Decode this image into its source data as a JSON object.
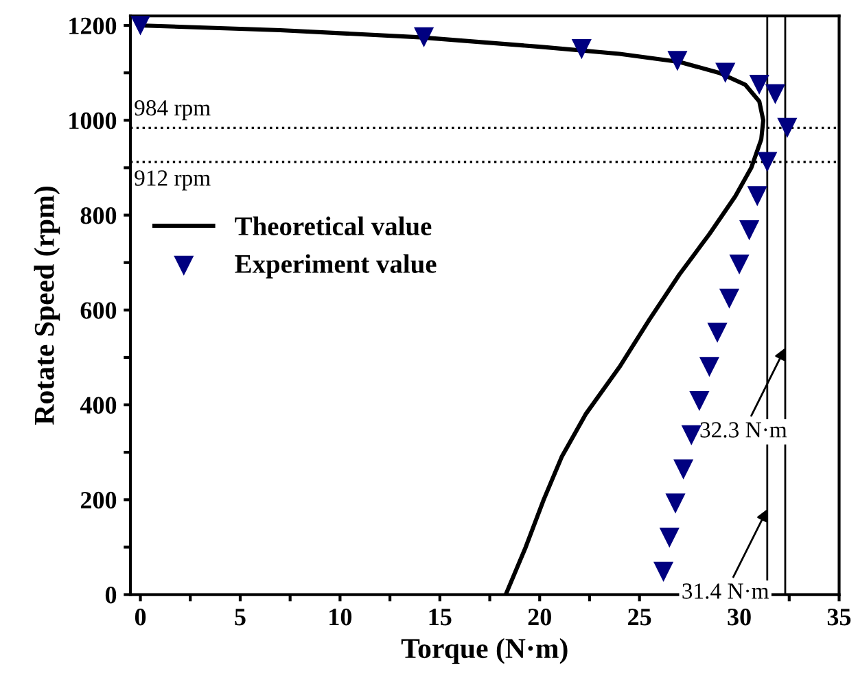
{
  "chart_data": {
    "type": "line",
    "xlabel": "Torque (N·m)",
    "ylabel": "Rotate Speed (rpm)",
    "xlim": [
      -0.5,
      35
    ],
    "ylim": [
      0,
      1220
    ],
    "xticks": [
      0,
      {
        "value": 2.5,
        "label": null
      },
      5,
      {
        "value": 7.5,
        "label": null
      },
      10,
      {
        "value": 12.5,
        "label": null
      },
      15,
      {
        "value": 17.5,
        "label": null
      },
      20,
      {
        "value": 22.5,
        "label": null
      },
      25,
      {
        "value": 27.5,
        "label": null
      },
      30,
      {
        "value": 32.5,
        "label": null
      },
      35
    ],
    "yticks": [
      0,
      {
        "value": 100,
        "label": null
      },
      200,
      {
        "value": 300,
        "label": null
      },
      400,
      {
        "value": 500,
        "label": null
      },
      600,
      {
        "value": 700,
        "label": null
      },
      800,
      {
        "value": 900,
        "label": null
      },
      1000,
      {
        "value": 1100,
        "label": null
      },
      1200
    ],
    "grid": false,
    "legend": "left",
    "series": [
      {
        "name": "Theoretical value",
        "color": "#000000",
        "marker": "none",
        "line_style": "solid",
        "x": [
          18.3,
          19.3,
          20.2,
          21.1,
          22.3,
          24,
          25.5,
          27,
          28.5,
          29.8,
          30.6,
          31.1,
          31.2,
          31.0,
          30.3,
          29,
          27,
          24,
          20,
          14,
          7,
          0
        ],
        "values": [
          0,
          100,
          200,
          290,
          380,
          480,
          580,
          675,
          760,
          840,
          900,
          960,
          1000,
          1040,
          1075,
          1100,
          1123,
          1140,
          1155,
          1175,
          1190,
          1200
        ]
      },
      {
        "name": "Experiment value",
        "type": "scatter",
        "color": "#000080",
        "marker": "triangle",
        "x": [
          0,
          14.2,
          22.1,
          26.9,
          29.3,
          31.0,
          31.8,
          32.4,
          31.4,
          30.9,
          30.5,
          30.0,
          29.5,
          28.9,
          28.5,
          28.0,
          27.6,
          27.2,
          26.8,
          26.5,
          26.2
        ],
        "values": [
          1200,
          1175,
          1150,
          1125,
          1100,
          1075,
          1055,
          984,
          912,
          840,
          768,
          696,
          624,
          552,
          480,
          408,
          336,
          264,
          192,
          120,
          48
        ]
      }
    ],
    "ref_lines": [
      {
        "axis": "y",
        "value": 984,
        "label": "984 rpm",
        "color": "#000000",
        "line_style": "dotted"
      },
      {
        "axis": "y",
        "value": 912,
        "label": "912 rpm",
        "color": "#000000",
        "line_style": "dotted"
      },
      {
        "axis": "x",
        "value": 31.4,
        "color": "#000000",
        "line_style": "solid"
      },
      {
        "axis": "x",
        "value": 32.3,
        "color": "#000000",
        "line_style": "solid"
      }
    ],
    "annotations": [
      {
        "text": "32.3 N·m",
        "x": 32.3,
        "y": 520
      },
      {
        "text": "31.4 N·m",
        "x": 31.4,
        "y": 180
      }
    ]
  }
}
